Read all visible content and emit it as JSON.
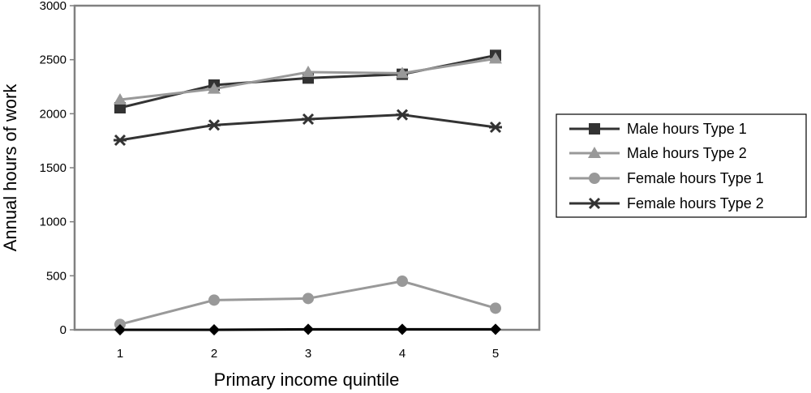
{
  "chart_data": {
    "type": "line",
    "title": "",
    "xlabel": "Primary income quintile",
    "ylabel": "Annual hours of work",
    "categories": [
      "1",
      "2",
      "3",
      "4",
      "5"
    ],
    "ylim": [
      0,
      3000
    ],
    "yticks": [
      "0",
      "500",
      "1000",
      "1500",
      "2000",
      "2500",
      "3000"
    ],
    "grid": false,
    "legend_position": "right",
    "series": [
      {
        "name": "Male hours Type 1",
        "values": [
          2055,
          2265,
          2330,
          2365,
          2540
        ],
        "color": "#333333",
        "marker": "square"
      },
      {
        "name": "Male hours Type 2",
        "values": [
          2130,
          2230,
          2385,
          2375,
          2510
        ],
        "color": "#999999",
        "marker": "triangle"
      },
      {
        "name": "Female hours Type 1",
        "values": [
          50,
          275,
          290,
          450,
          200
        ],
        "color": "#999999",
        "marker": "circle"
      },
      {
        "name": "Female hours Type 2",
        "values": [
          1755,
          1895,
          1950,
          1990,
          1875
        ],
        "color": "#333333",
        "marker": "star"
      },
      {
        "name": "",
        "values": [
          0,
          0,
          5,
          5,
          5
        ],
        "color": "#000000",
        "marker": "diamond"
      }
    ]
  }
}
